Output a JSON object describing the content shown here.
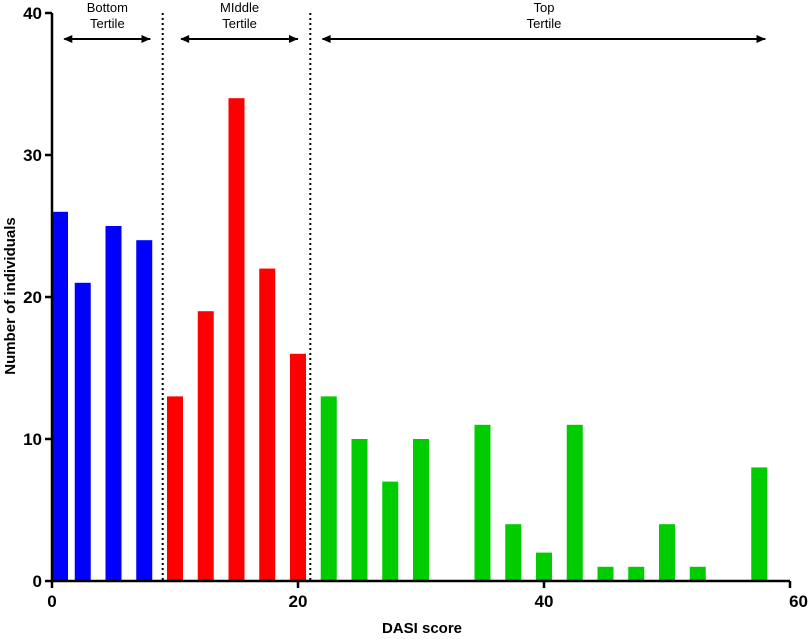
{
  "chart_data": {
    "type": "bar",
    "xlabel": "DASI score",
    "ylabel": "Number of individuals",
    "xlim": [
      0,
      60
    ],
    "ylim": [
      0,
      40
    ],
    "x_ticks": [
      "0",
      "20",
      "40",
      "60"
    ],
    "y_ticks": [
      "0",
      "10",
      "20",
      "30",
      "40"
    ],
    "grid": false,
    "series": [
      {
        "color": "#0000ff",
        "x": [
          0,
          2.5,
          5,
          7.5
        ],
        "values": [
          26,
          21,
          25,
          24
        ]
      },
      {
        "color": "#ff0000",
        "x": [
          10,
          12.5,
          15,
          17.5,
          20
        ],
        "values": [
          13,
          19,
          34,
          22,
          16
        ]
      },
      {
        "color": "#00cc00",
        "x": [
          22.5,
          25,
          27.5,
          30,
          32.5,
          35,
          37.5,
          40,
          42.5,
          45,
          47.5,
          50,
          52.5,
          55,
          57.5
        ],
        "values": [
          13,
          10,
          7,
          10,
          0,
          11,
          4,
          2,
          11,
          1,
          1,
          4,
          1,
          0,
          8
        ]
      }
    ],
    "dividers_x": [
      9,
      21
    ],
    "tertiles": [
      {
        "line1": "Bottom",
        "line2": "Tertile",
        "from": 1,
        "to": 8
      },
      {
        "line1": "MIddle",
        "line2": "Tertile",
        "from": 10.5,
        "to": 20
      },
      {
        "line1": "Top",
        "line2": "Tertile",
        "from": 22,
        "to": 58
      }
    ]
  }
}
